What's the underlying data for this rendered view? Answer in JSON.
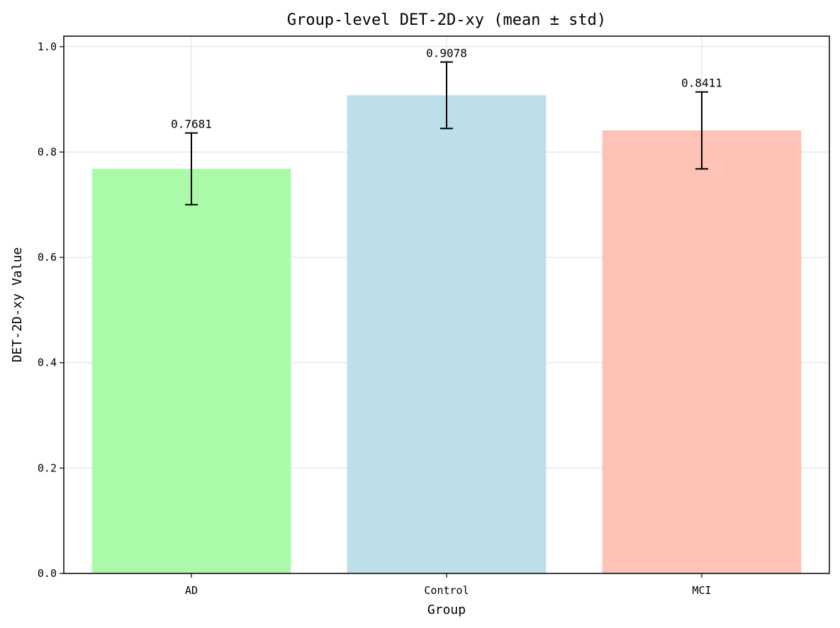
{
  "chart_data": {
    "type": "bar",
    "title": "Group-level DET-2D-xy (mean ± std)",
    "xlabel": "Group",
    "ylabel": "DET-2D-xy Value",
    "categories": [
      "AD",
      "Control",
      "MCI"
    ],
    "values": [
      0.7681,
      0.9078,
      0.8411
    ],
    "errors": [
      0.068,
      0.063,
      0.073
    ],
    "value_labels": [
      "0.7681",
      "0.9078",
      "0.8411"
    ],
    "colors": [
      "#abfaa9",
      "#bddfe9",
      "#fec3b6"
    ],
    "ylim": [
      0,
      1.02
    ],
    "yticks": [
      0.0,
      0.2,
      0.4,
      0.6,
      0.8,
      1.0
    ],
    "ytick_labels": [
      "0.0",
      "0.2",
      "0.4",
      "0.6",
      "0.8",
      "1.0"
    ],
    "grid": true
  }
}
